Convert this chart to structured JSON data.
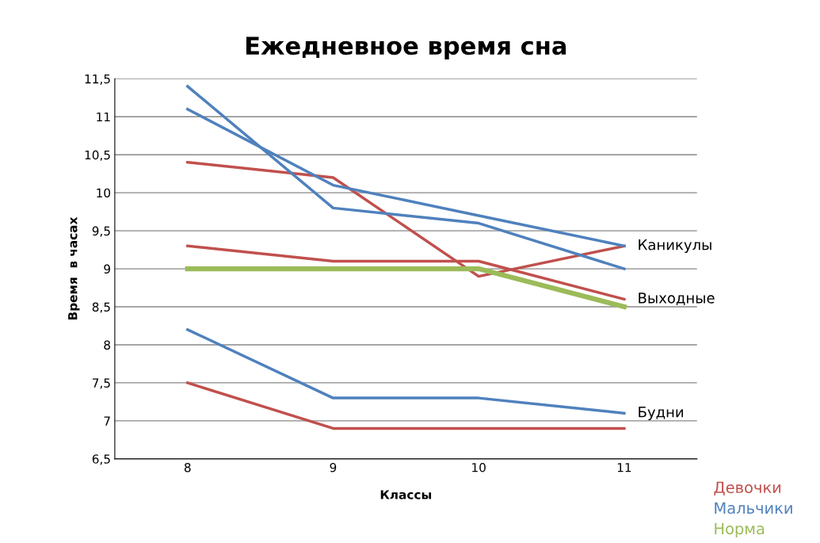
{
  "chart_data": {
    "type": "line",
    "title": "Ежедневное время сна",
    "xlabel": "Классы",
    "ylabel": "Время  в часах",
    "categories": [
      "8",
      "9",
      "10",
      "11"
    ],
    "series": [
      {
        "name": "Девочки",
        "color": "#c0504d",
        "values": [
          10.4,
          10.2,
          8.9,
          9.3
        ]
      },
      {
        "color": "#c0504d",
        "values": [
          9.3,
          9.1,
          9.1,
          8.6
        ]
      },
      {
        "color": "#c0504d",
        "values": [
          7.5,
          6.9,
          6.9,
          6.9
        ]
      },
      {
        "name": "Мальчики",
        "color": "#4f81bd",
        "values": [
          11.4,
          9.8,
          9.6,
          9.0
        ]
      },
      {
        "color": "#4f81bd",
        "values": [
          11.1,
          10.1,
          9.7,
          9.3
        ]
      },
      {
        "color": "#4f81bd",
        "values": [
          8.2,
          7.3,
          7.3,
          7.1
        ]
      },
      {
        "name": "Норма",
        "color": "#9bbb59",
        "values": [
          9,
          9,
          9,
          8.5
        ]
      }
    ],
    "ylim": [
      6.5,
      11.5
    ],
    "yticks": [
      {
        "value": 6.5,
        "label": "6,5"
      },
      7,
      {
        "value": 7.5,
        "label": "7,5"
      },
      8,
      {
        "value": 8.5,
        "label": "8,5"
      },
      9,
      {
        "value": 9.5,
        "label": "9,5"
      },
      10,
      {
        "value": 10.5,
        "label": "10,5"
      },
      11,
      {
        "value": 11.5,
        "label": "11,5"
      }
    ],
    "grid": "y",
    "legend": "bottom right",
    "marker": "none",
    "line_style": "solid",
    "annotations": [
      {
        "text": "Каникулы",
        "x": "11",
        "y": 9.3
      },
      {
        "text": "Выходные",
        "x": "11",
        "y": 8.6
      },
      {
        "text": "Будни",
        "x": "11",
        "y": 7.1
      }
    ]
  }
}
